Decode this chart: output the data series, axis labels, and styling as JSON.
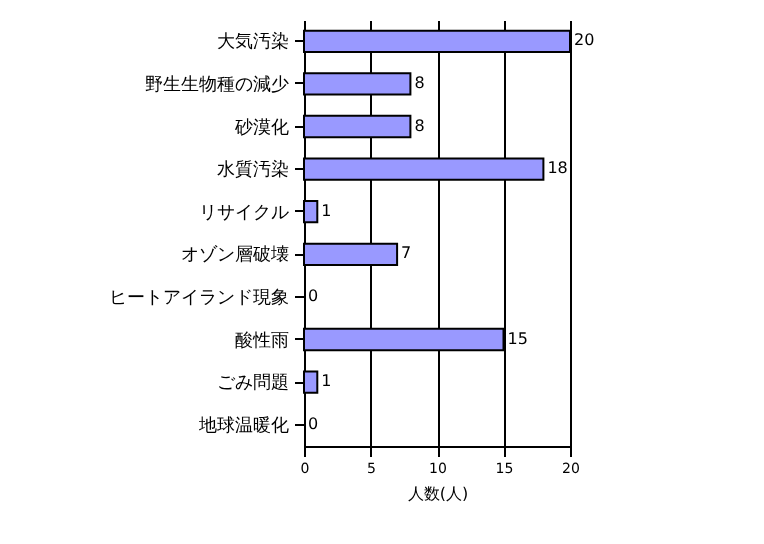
{
  "chart_data": {
    "type": "bar",
    "orientation": "horizontal",
    "xlabel": "人数(人)",
    "categories": [
      "大気汚染",
      "野生生物種の減少",
      "砂漠化",
      "水質汚染",
      "リサイクル",
      "オゾン層破壊",
      "ヒートアイランド現象",
      "酸性雨",
      "ごみ問題",
      "地球温暖化"
    ],
    "values": [
      20,
      8,
      8,
      18,
      1,
      7,
      0,
      15,
      1,
      0
    ],
    "color": "#9999ff",
    "xlim": [
      0,
      20
    ],
    "xticks": [
      0,
      5,
      10,
      15,
      20
    ],
    "grid": "x",
    "data_labels": true
  }
}
